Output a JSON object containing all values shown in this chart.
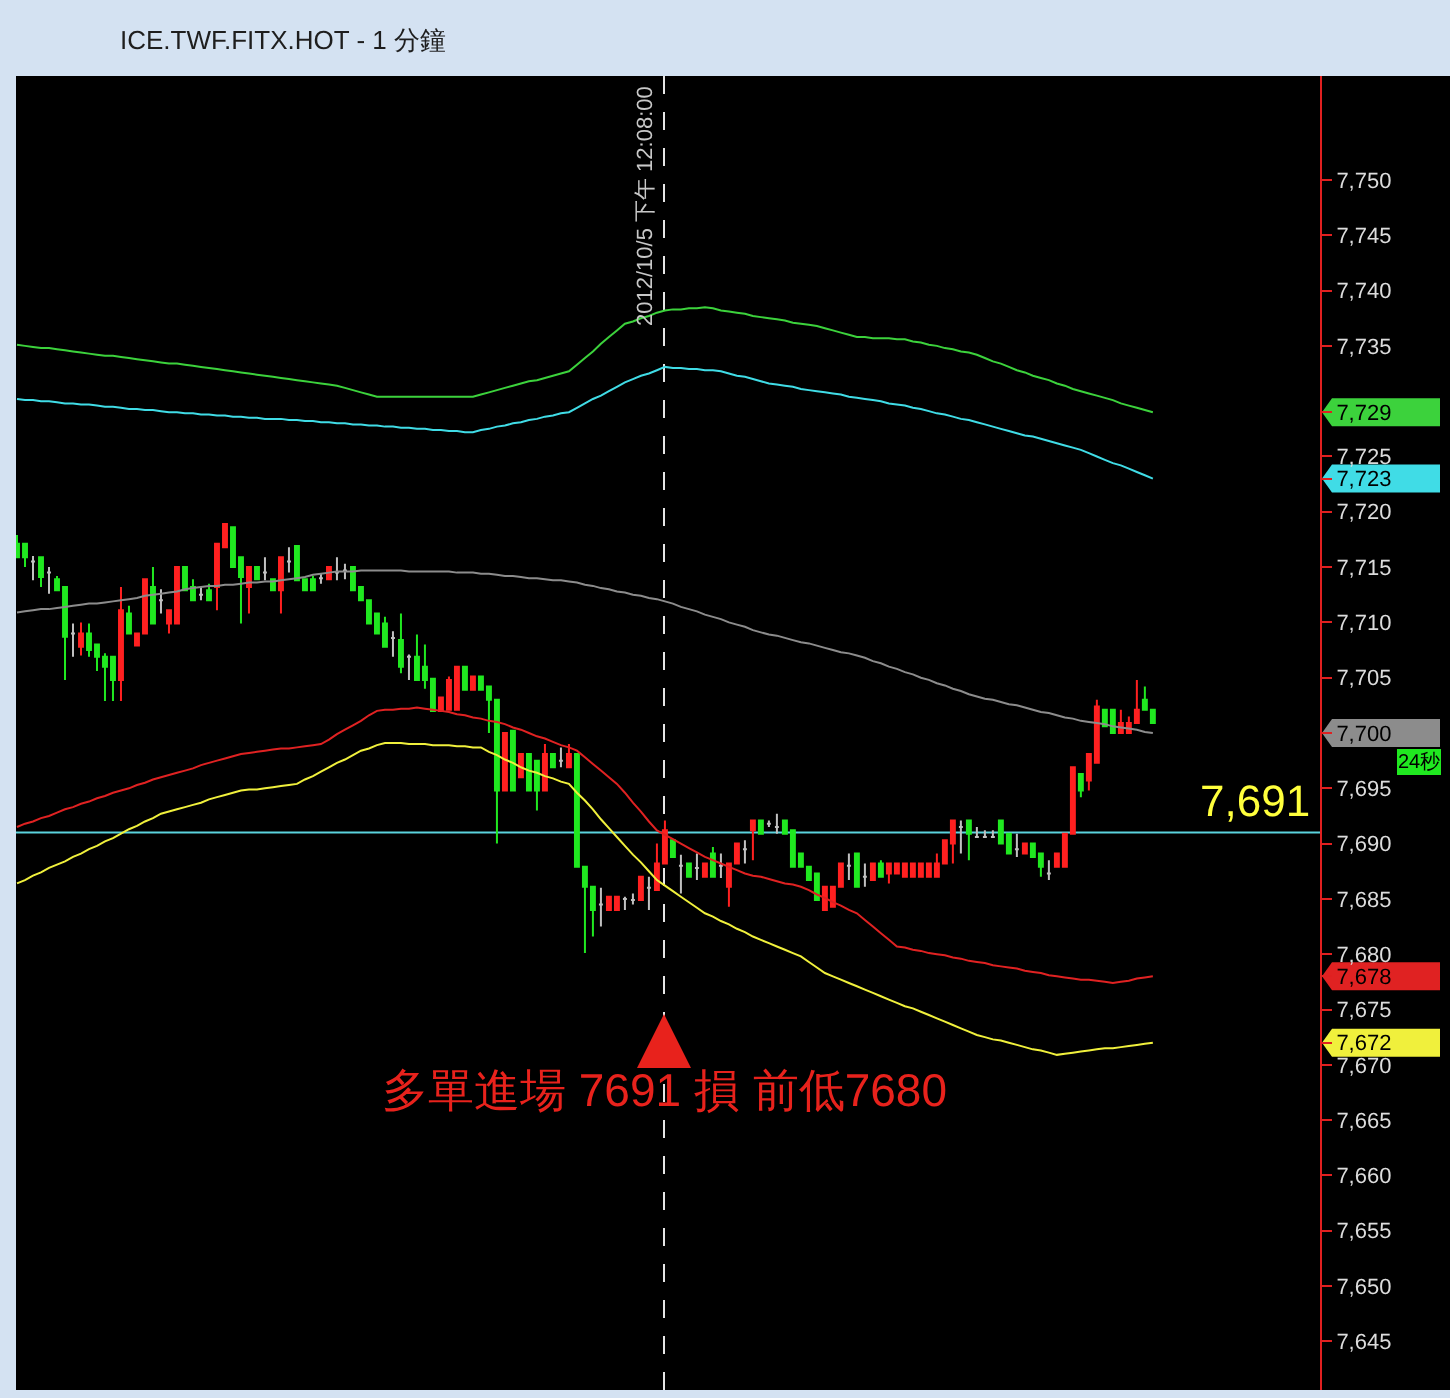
{
  "chart_data": {
    "type": "candlestick",
    "title": "ICE.TWF.FITX.HOT - 1 分鐘",
    "tick_labels": "y",
    "categories": [
      null,
      null,
      null,
      null,
      null,
      null,
      null,
      null,
      null,
      null,
      null,
      null,
      null,
      null,
      null,
      null,
      null,
      null,
      null,
      null,
      null,
      null,
      null,
      null,
      null,
      null,
      null,
      null,
      null,
      null,
      null,
      null,
      null,
      null,
      null,
      null,
      null,
      null,
      null,
      null,
      null,
      null,
      null,
      null,
      null,
      null,
      null,
      null,
      null,
      null,
      null,
      null,
      null,
      null,
      null,
      null,
      null,
      null,
      null,
      null,
      null,
      null,
      null,
      null,
      null,
      null,
      null,
      null,
      null,
      null,
      null,
      null,
      null,
      null,
      null,
      null,
      null,
      null,
      null,
      null,
      null,
      null,
      null,
      null,
      null,
      null,
      null,
      null,
      null,
      null,
      null,
      null,
      null,
      null,
      null,
      null,
      null,
      null,
      null,
      null,
      null,
      null,
      null,
      null,
      null,
      null,
      null,
      null,
      null,
      null,
      null,
      null,
      null,
      null,
      null,
      null,
      null,
      null,
      null,
      null,
      null,
      null,
      null,
      null,
      null,
      null,
      null,
      null,
      null,
      null,
      null,
      null,
      null,
      null,
      null,
      null,
      null,
      null,
      null,
      null,
      null,
      null,
      null
    ],
    "ohlc": [
      [
        7717.1,
        7717.9,
        7715.9,
        7715.9
      ],
      [
        7717.1,
        7717.1,
        7715.0,
        7715.9
      ],
      [
        7715.5,
        7716.0,
        7713.8,
        7715.5
      ],
      [
        7715.9,
        7715.9,
        7713.2,
        7714.1
      ],
      [
        7714.5,
        7715.0,
        7712.6,
        7714.5
      ],
      [
        7713.9,
        7714.2,
        7712.9,
        7712.9
      ],
      [
        7713.2,
        7713.2,
        7704.8,
        7708.7
      ],
      [
        7709.0,
        7709.9,
        7706.9,
        7709.0
      ],
      [
        7707.8,
        7710.0,
        7707.0,
        7709.0
      ],
      [
        7709.0,
        7709.9,
        7706.9,
        7707.5
      ],
      [
        7708.0,
        7708.0,
        7705.6,
        7706.9
      ],
      [
        7706.9,
        7707.2,
        7702.9,
        7706.0
      ],
      [
        7706.9,
        7706.9,
        7702.9,
        7704.8
      ],
      [
        7704.8,
        7713.2,
        7702.9,
        7711.1
      ],
      [
        7710.8,
        7711.5,
        7709.0,
        7709.0
      ],
      [
        7707.9,
        7709.0,
        7707.9,
        7709.0
      ],
      [
        7709.0,
        7713.9,
        7709.0,
        7713.9
      ],
      [
        7713.2,
        7715.0,
        7709.9,
        7709.9
      ],
      [
        7712.0,
        7713.0,
        7710.8,
        7712.0
      ],
      [
        7709.9,
        7711.1,
        7709.0,
        7711.1
      ],
      [
        7709.9,
        7715.0,
        7709.9,
        7715.0
      ],
      [
        7715.0,
        7715.0,
        7712.9,
        7712.9
      ],
      [
        7713.2,
        7713.9,
        7712.0,
        7712.0
      ],
      [
        7712.5,
        7713.2,
        7712.0,
        7712.5
      ],
      [
        7712.9,
        7713.5,
        7712.0,
        7712.0
      ],
      [
        7713.2,
        7717.1,
        7711.1,
        7717.1
      ],
      [
        7716.8,
        7718.9,
        7716.8,
        7718.9
      ],
      [
        7718.6,
        7718.6,
        7715.0,
        7715.0
      ],
      [
        7715.9,
        7715.9,
        7709.9,
        7714.1
      ],
      [
        7713.2,
        7715.0,
        7710.8,
        7715.0
      ],
      [
        7715.0,
        7715.0,
        7713.9,
        7713.9
      ],
      [
        7714.5,
        7715.9,
        7713.8,
        7714.5
      ],
      [
        7713.9,
        7713.9,
        7712.9,
        7712.9
      ],
      [
        7712.9,
        7715.9,
        7710.8,
        7715.9
      ],
      [
        7715.5,
        7716.8,
        7714.5,
        7715.5
      ],
      [
        7716.9,
        7716.9,
        7713.8,
        7713.8
      ],
      [
        7713.9,
        7713.9,
        7712.9,
        7712.9
      ],
      [
        7713.9,
        7714.2,
        7712.9,
        7712.9
      ],
      [
        7714.0,
        7714.4,
        7713.5,
        7714.0
      ],
      [
        7713.9,
        7715.0,
        7713.9,
        7715.0
      ],
      [
        7714.5,
        7715.9,
        7713.8,
        7714.5
      ],
      [
        7714.7,
        7715.3,
        7713.9,
        7714.7
      ],
      [
        7715.0,
        7715.0,
        7712.9,
        7712.9
      ],
      [
        7713.2,
        7713.2,
        7712.0,
        7712.0
      ],
      [
        7712.0,
        7712.0,
        7709.9,
        7709.9
      ],
      [
        7710.8,
        7710.8,
        7709.0,
        7709.0
      ],
      [
        7709.9,
        7710.5,
        7707.8,
        7707.8
      ],
      [
        7708.6,
        7709.2,
        7706.9,
        7708.6
      ],
      [
        7708.4,
        7710.8,
        7705.4,
        7706.0
      ],
      [
        7706.9,
        7707.1,
        7704.8,
        7706.9
      ],
      [
        7706.9,
        7708.9,
        7704.8,
        7704.8
      ],
      [
        7706.0,
        7708.0,
        7704.0,
        7704.8
      ],
      [
        7704.9,
        7704.9,
        7702.0,
        7702.0
      ],
      [
        7702.0,
        7703.2,
        7702.0,
        7703.2
      ],
      [
        7702.1,
        7705.1,
        7702.1,
        7704.8
      ],
      [
        7702.1,
        7706.0,
        7702.1,
        7706.0
      ],
      [
        7706.0,
        7706.0,
        7703.9,
        7703.9
      ],
      [
        7703.9,
        7705.1,
        7703.9,
        7705.1
      ],
      [
        7705.1,
        7705.1,
        7703.9,
        7703.9
      ],
      [
        7704.2,
        7704.2,
        7700.0,
        7703.0
      ],
      [
        7703.0,
        7703.0,
        7690.0,
        7694.8
      ],
      [
        7694.8,
        7700.0,
        7694.8,
        7700.0
      ],
      [
        7700.2,
        7700.2,
        7694.8,
        7694.8
      ],
      [
        7696.0,
        7698.1,
        7696.0,
        7698.1
      ],
      [
        7698.1,
        7698.1,
        7694.8,
        7694.8
      ],
      [
        7697.5,
        7697.5,
        7693.0,
        7694.8
      ],
      [
        7694.8,
        7699.0,
        7694.8,
        7698.1
      ],
      [
        7698.1,
        7698.1,
        7696.9,
        7696.9
      ],
      [
        7697.5,
        7698.7,
        7696.9,
        7697.5
      ],
      [
        7696.9,
        7699.0,
        7696.9,
        7698.1
      ],
      [
        7698.1,
        7698.1,
        7687.9,
        7687.9
      ],
      [
        7687.9,
        7687.9,
        7680.1,
        7686.1
      ],
      [
        7686.1,
        7686.1,
        7681.6,
        7684.0
      ],
      [
        7684.5,
        7686.0,
        7682.5,
        7684.5
      ],
      [
        7684.0,
        7685.2,
        7684.0,
        7685.2
      ],
      [
        7684.0,
        7685.2,
        7684.0,
        7685.2
      ],
      [
        7685.0,
        7685.2,
        7684.0,
        7685.0
      ],
      [
        7684.9,
        7685.5,
        7684.5,
        7684.9
      ],
      [
        7684.9,
        7687.0,
        7684.9,
        7687.0
      ],
      [
        7686.0,
        7687.0,
        7684.0,
        7686.0
      ],
      [
        7685.8,
        7690.0,
        7685.8,
        7688.2
      ],
      [
        7688.2,
        7692.1,
        7688.2,
        7691.2
      ],
      [
        7690.3,
        7690.3,
        7688.8,
        7688.8
      ],
      [
        7688.0,
        7689.0,
        7685.5,
        7688.0
      ],
      [
        7688.2,
        7688.2,
        7687.0,
        7687.0
      ],
      [
        7687.8,
        7689.1,
        7686.7,
        7687.8
      ],
      [
        7687.0,
        7688.2,
        7687.0,
        7688.2
      ],
      [
        7689.1,
        7689.7,
        7687.0,
        7687.0
      ],
      [
        7688.0,
        7689.1,
        7686.9,
        7688.0
      ],
      [
        7686.1,
        7688.2,
        7684.3,
        7688.2
      ],
      [
        7688.2,
        7690.0,
        7688.2,
        7690.0
      ],
      [
        7689.5,
        7690.3,
        7688.2,
        7689.5
      ],
      [
        7691.2,
        7692.1,
        7688.5,
        7692.1
      ],
      [
        7692.1,
        7692.1,
        7690.9,
        7690.9
      ],
      [
        7691.8,
        7692.1,
        7691.5,
        7691.8
      ],
      [
        7691.5,
        7692.7,
        7690.9,
        7691.5
      ],
      [
        7692.1,
        7692.1,
        7690.9,
        7690.9
      ],
      [
        7691.2,
        7691.2,
        7687.9,
        7687.9
      ],
      [
        7689.1,
        7689.1,
        7687.9,
        7687.9
      ],
      [
        7687.9,
        7687.9,
        7686.7,
        7686.7
      ],
      [
        7687.3,
        7687.3,
        7684.9,
        7684.9
      ],
      [
        7684.0,
        7686.1,
        7684.0,
        7686.1
      ],
      [
        7684.3,
        7686.1,
        7684.3,
        7686.1
      ],
      [
        7686.1,
        7688.2,
        7686.1,
        7688.2
      ],
      [
        7688.0,
        7689.1,
        7686.7,
        7688.0
      ],
      [
        7689.1,
        7689.1,
        7686.1,
        7686.1
      ],
      [
        7687.0,
        7688.2,
        7686.1,
        7687.0
      ],
      [
        7686.7,
        7688.2,
        7686.7,
        7688.2
      ],
      [
        7688.2,
        7688.5,
        7687.0,
        7687.0
      ],
      [
        7687.3,
        7688.2,
        7686.4,
        7688.2
      ],
      [
        7687.3,
        7688.2,
        7687.3,
        7688.2
      ],
      [
        7687.0,
        7688.2,
        7687.0,
        7688.2
      ],
      [
        7687.0,
        7688.2,
        7687.0,
        7688.2
      ],
      [
        7687.0,
        7688.2,
        7687.0,
        7688.2
      ],
      [
        7687.0,
        7688.2,
        7687.0,
        7688.2
      ],
      [
        7687.0,
        7689.1,
        7687.0,
        7688.2
      ],
      [
        7688.2,
        7690.3,
        7688.2,
        7690.3
      ],
      [
        7690.0,
        7692.1,
        7688.2,
        7692.1
      ],
      [
        7691.5,
        7692.1,
        7689.1,
        7691.5
      ],
      [
        7692.1,
        7692.1,
        7688.5,
        7690.9
      ],
      [
        7690.6,
        7691.5,
        7690.6,
        7690.6
      ],
      [
        7690.6,
        7691.2,
        7690.6,
        7690.6
      ],
      [
        7690.6,
        7691.2,
        7690.6,
        7690.6
      ],
      [
        7692.1,
        7692.1,
        7690.0,
        7690.0
      ],
      [
        7690.9,
        7690.9,
        7689.1,
        7689.1
      ],
      [
        7689.5,
        7690.9,
        7688.8,
        7689.5
      ],
      [
        7689.1,
        7690.0,
        7689.1,
        7690.0
      ],
      [
        7690.0,
        7690.0,
        7688.8,
        7688.8
      ],
      [
        7689.1,
        7689.1,
        7687.0,
        7687.9
      ],
      [
        7687.3,
        7688.5,
        7686.7,
        7687.3
      ],
      [
        7687.9,
        7689.1,
        7687.9,
        7689.1
      ],
      [
        7687.9,
        7690.9,
        7687.9,
        7690.9
      ],
      [
        7690.9,
        7696.9,
        7690.9,
        7696.9
      ],
      [
        7696.3,
        7696.3,
        7694.2,
        7694.8
      ],
      [
        7695.7,
        7698.1,
        7694.8,
        7698.1
      ],
      [
        7697.3,
        7703.0,
        7697.3,
        7702.4
      ],
      [
        7702.1,
        7702.1,
        7700.6,
        7700.6
      ],
      [
        7702.1,
        7702.1,
        7700.0,
        7700.0
      ],
      [
        7700.0,
        7702.1,
        7700.0,
        7700.9
      ],
      [
        7700.0,
        7701.5,
        7700.0,
        7700.9
      ],
      [
        7700.9,
        7704.8,
        7700.9,
        7702.1
      ],
      [
        7703.0,
        7704.2,
        7702.1,
        7702.1
      ],
      [
        7702.1,
        7702.1,
        7700.9,
        7700.9
      ]
    ],
    "colors": [
      "#20e820",
      "#20e820",
      "#c0c0c0",
      "#20e820",
      "#c0c0c0",
      "#20e820",
      "#20e820",
      "#c0c0c0",
      "#ff2020",
      "#20e820",
      "#20e820",
      "#20e820",
      "#20e820",
      "#ff2020",
      "#20e820",
      "#ff2020",
      "#ff2020",
      "#20e820",
      "#c0c0c0",
      "#ff2020",
      "#ff2020",
      "#20e820",
      "#20e820",
      "#c0c0c0",
      "#20e820",
      "#ff2020",
      "#ff2020",
      "#20e820",
      "#20e820",
      "#ff2020",
      "#20e820",
      "#c0c0c0",
      "#20e820",
      "#ff2020",
      "#c0c0c0",
      "#20e820",
      "#20e820",
      "#20e820",
      "#c0c0c0",
      "#ff2020",
      "#c0c0c0",
      "#c0c0c0",
      "#20e820",
      "#20e820",
      "#20e820",
      "#20e820",
      "#20e820",
      "#c0c0c0",
      "#20e820",
      "#c0c0c0",
      "#20e820",
      "#20e820",
      "#20e820",
      "#ff2020",
      "#ff2020",
      "#ff2020",
      "#20e820",
      "#ff2020",
      "#20e820",
      "#20e820",
      "#20e820",
      "#ff2020",
      "#20e820",
      "#ff2020",
      "#20e820",
      "#20e820",
      "#ff2020",
      "#20e820",
      "#c0c0c0",
      "#ff2020",
      "#20e820",
      "#20e820",
      "#20e820",
      "#c0c0c0",
      "#ff2020",
      "#ff2020",
      "#c0c0c0",
      "#c0c0c0",
      "#ff2020",
      "#c0c0c0",
      "#ff2020",
      "#ff2020",
      "#20e820",
      "#c0c0c0",
      "#20e820",
      "#c0c0c0",
      "#ff2020",
      "#20e820",
      "#c0c0c0",
      "#ff2020",
      "#ff2020",
      "#c0c0c0",
      "#ff2020",
      "#20e820",
      "#c0c0c0",
      "#c0c0c0",
      "#20e820",
      "#20e820",
      "#20e820",
      "#20e820",
      "#20e820",
      "#ff2020",
      "#ff2020",
      "#ff2020",
      "#c0c0c0",
      "#20e820",
      "#c0c0c0",
      "#ff2020",
      "#20e820",
      "#ff2020",
      "#ff2020",
      "#ff2020",
      "#ff2020",
      "#ff2020",
      "#ff2020",
      "#ff2020",
      "#ff2020",
      "#ff2020",
      "#c0c0c0",
      "#20e820",
      "#c0c0c0",
      "#c0c0c0",
      "#c0c0c0",
      "#20e820",
      "#20e820",
      "#c0c0c0",
      "#ff2020",
      "#20e820",
      "#20e820",
      "#c0c0c0",
      "#ff2020",
      "#ff2020",
      "#ff2020",
      "#20e820",
      "#ff2020",
      "#ff2020",
      "#20e820",
      "#20e820",
      "#ff2020",
      "#ff2020",
      "#ff2020",
      "#20e820",
      "#20e820"
    ],
    "series": [
      {
        "type": "line",
        "color": "#3cd23c",
        "values": [
          7735.1,
          7735.0,
          7734.9,
          7734.8,
          7734.8,
          7734.7,
          7734.6,
          7734.5,
          7734.4,
          7734.3,
          7734.2,
          7734.1,
          7734.1,
          7734.0,
          7733.9,
          7733.8,
          7733.7,
          7733.6,
          7733.5,
          7733.4,
          7733.4,
          7733.3,
          7733.2,
          7733.1,
          7733.0,
          7732.9,
          7732.8,
          7732.7,
          7732.6,
          7732.5,
          7732.4,
          7732.3,
          7732.2,
          7732.1,
          7732.0,
          7731.9,
          7731.8,
          7731.7,
          7731.6,
          7731.5,
          7731.4,
          7731.2,
          7731.0,
          7730.8,
          7730.6,
          7730.4,
          7730.4,
          7730.4,
          7730.4,
          7730.4,
          7730.4,
          7730.4,
          7730.4,
          7730.4,
          7730.4,
          7730.4,
          7730.4,
          7730.4,
          7730.6,
          7730.8,
          7731.0,
          7731.2,
          7731.4,
          7731.6,
          7731.8,
          7731.9,
          7732.1,
          7732.3,
          7732.5,
          7732.7,
          7733.3,
          7733.9,
          7734.5,
          7735.2,
          7735.8,
          7736.4,
          7737.0,
          7737.2,
          7737.5,
          7737.7,
          7738.0,
          7738.2,
          7738.3,
          7738.3,
          7738.4,
          7738.4,
          7738.5,
          7738.4,
          7738.2,
          7738.1,
          7738.0,
          7737.9,
          7737.7,
          7737.6,
          7737.5,
          7737.4,
          7737.3,
          7737.1,
          7737.0,
          7736.9,
          7736.8,
          7736.6,
          7736.4,
          7736.2,
          7736.0,
          7735.8,
          7735.8,
          7735.7,
          7735.7,
          7735.7,
          7735.6,
          7735.6,
          7735.4,
          7735.3,
          7735.1,
          7735.0,
          7734.8,
          7734.7,
          7734.5,
          7734.4,
          7734.2,
          7733.9,
          7733.6,
          7733.4,
          7733.1,
          7732.8,
          7732.6,
          7732.3,
          7732.1,
          7731.9,
          7731.6,
          7731.4,
          7731.1,
          7730.9,
          7730.7,
          7730.5,
          7730.3,
          7730.1,
          7729.8,
          7729.6,
          7729.4,
          7729.2,
          7729.0
        ]
      },
      {
        "type": "line",
        "color": "#40dce6",
        "values": [
          7730.2,
          7730.1,
          7730.1,
          7730.0,
          7730.0,
          7729.9,
          7729.8,
          7729.8,
          7729.7,
          7729.7,
          7729.6,
          7729.5,
          7729.5,
          7729.4,
          7729.3,
          7729.3,
          7729.2,
          7729.2,
          7729.1,
          7729.0,
          7729.0,
          7728.9,
          7728.9,
          7728.8,
          7728.8,
          7728.7,
          7728.7,
          7728.6,
          7728.6,
          7728.5,
          7728.5,
          7728.4,
          7728.4,
          7728.4,
          7728.3,
          7728.3,
          7728.2,
          7728.2,
          7728.1,
          7728.1,
          7728.0,
          7728.0,
          7727.9,
          7727.9,
          7727.8,
          7727.8,
          7727.7,
          7727.7,
          7727.6,
          7727.6,
          7727.5,
          7727.5,
          7727.4,
          7727.4,
          7727.3,
          7727.3,
          7727.2,
          7727.2,
          7727.4,
          7727.5,
          7727.7,
          7727.8,
          7728.0,
          7728.1,
          7728.3,
          7728.4,
          7728.6,
          7728.7,
          7728.9,
          7729.0,
          7729.4,
          7729.8,
          7730.2,
          7730.5,
          7730.9,
          7731.3,
          7731.7,
          7732.0,
          7732.3,
          7732.5,
          7732.8,
          7733.1,
          7733.0,
          7733.0,
          7732.9,
          7732.9,
          7732.8,
          7732.8,
          7732.7,
          7732.5,
          7732.3,
          7732.2,
          7732.0,
          7731.8,
          7731.6,
          7731.5,
          7731.4,
          7731.3,
          7731.1,
          7731.0,
          7730.9,
          7730.8,
          7730.7,
          7730.6,
          7730.4,
          7730.3,
          7730.2,
          7730.1,
          7730.0,
          7729.8,
          7729.7,
          7729.6,
          7729.4,
          7729.3,
          7729.1,
          7728.9,
          7728.8,
          7728.6,
          7728.4,
          7728.3,
          7728.1,
          7727.9,
          7727.7,
          7727.5,
          7727.3,
          7727.1,
          7726.9,
          7726.8,
          7726.6,
          7726.4,
          7726.2,
          7726.0,
          7725.8,
          7725.6,
          7725.3,
          7725.0,
          7724.7,
          7724.4,
          7724.2,
          7723.9,
          7723.6,
          7723.3,
          7723.0
        ]
      },
      {
        "type": "line",
        "color": "#8c8c8c",
        "values": [
          7710.9,
          7711.0,
          7711.1,
          7711.2,
          7711.2,
          7711.3,
          7711.4,
          7711.5,
          7711.6,
          7711.7,
          7711.7,
          7711.8,
          7711.9,
          7712.0,
          7712.1,
          7712.2,
          7712.4,
          7712.5,
          7712.6,
          7712.7,
          7712.8,
          7713.0,
          7713.1,
          7713.2,
          7713.3,
          7713.3,
          7713.4,
          7713.4,
          7713.5,
          7713.6,
          7713.6,
          7713.7,
          7713.7,
          7713.8,
          7713.9,
          7714.0,
          7714.1,
          7714.3,
          7714.4,
          7714.5,
          7714.6,
          7714.6,
          7714.6,
          7714.7,
          7714.7,
          7714.7,
          7714.7,
          7714.7,
          7714.7,
          7714.6,
          7714.6,
          7714.6,
          7714.6,
          7714.6,
          7714.6,
          7714.5,
          7714.5,
          7714.5,
          7714.4,
          7714.4,
          7714.3,
          7714.2,
          7714.2,
          7714.1,
          7714.0,
          7714.0,
          7713.9,
          7713.8,
          7713.8,
          7713.7,
          7713.6,
          7713.4,
          7713.3,
          7713.1,
          7713.0,
          7712.8,
          7712.7,
          7712.5,
          7712.4,
          7712.2,
          7712.1,
          7711.9,
          7711.7,
          7711.4,
          7711.2,
          7711.0,
          7710.7,
          7710.5,
          7710.3,
          7710.0,
          7709.8,
          7709.6,
          7709.3,
          7709.1,
          7708.9,
          7708.8,
          7708.6,
          7708.4,
          7708.2,
          7708.1,
          7707.9,
          7707.7,
          7707.5,
          7707.3,
          7707.2,
          7707.0,
          7706.8,
          7706.5,
          7706.3,
          7706.0,
          7705.8,
          7705.5,
          7705.3,
          7705.0,
          7704.8,
          7704.5,
          7704.3,
          7704.0,
          7703.8,
          7703.5,
          7703.3,
          7703.1,
          7703.0,
          7702.8,
          7702.6,
          7702.5,
          7702.3,
          7702.1,
          7701.9,
          7701.8,
          7701.6,
          7701.4,
          7701.3,
          7701.1,
          7701.0,
          7700.9,
          7700.8,
          7700.6,
          7700.5,
          7700.4,
          7700.3,
          7700.1,
          7700.0
        ]
      },
      {
        "type": "line",
        "color": "#e02222",
        "values": [
          7691.5,
          7691.8,
          7692.0,
          7692.3,
          7692.5,
          7692.8,
          7693.1,
          7693.3,
          7693.6,
          7693.8,
          7694.1,
          7694.3,
          7694.6,
          7694.8,
          7695.0,
          7695.3,
          7695.5,
          7695.8,
          7696.0,
          7696.2,
          7696.4,
          7696.6,
          7696.8,
          7697.1,
          7697.3,
          7697.5,
          7697.7,
          7697.9,
          7698.1,
          7698.2,
          7698.3,
          7698.4,
          7698.5,
          7698.6,
          7698.6,
          7698.7,
          7698.8,
          7698.9,
          7699.0,
          7699.4,
          7699.9,
          7700.3,
          7700.7,
          7701.1,
          7701.6,
          7702.0,
          7702.1,
          7702.1,
          7702.2,
          7702.2,
          7702.3,
          7702.2,
          7702.1,
          7702.0,
          7701.9,
          7701.7,
          7701.6,
          7701.4,
          7701.3,
          7701.1,
          7701.0,
          7700.8,
          7700.5,
          7700.3,
          7700.0,
          7699.7,
          7699.5,
          7699.2,
          7698.9,
          7698.7,
          7698.4,
          7697.8,
          7697.2,
          7696.6,
          7696.0,
          7695.4,
          7694.6,
          7693.7,
          7692.9,
          7692.0,
          7691.2,
          7690.8,
          7690.4,
          7690.0,
          7689.6,
          7689.2,
          7688.8,
          7688.5,
          7688.2,
          7687.9,
          7687.6,
          7687.3,
          7687.1,
          7687.0,
          7686.8,
          7686.6,
          7686.4,
          7686.3,
          7686.1,
          7685.8,
          7685.4,
          7685.1,
          7684.7,
          7684.4,
          7684.0,
          7683.7,
          7683.1,
          7682.5,
          7681.9,
          7681.3,
          7680.7,
          7680.6,
          7680.4,
          7680.3,
          7680.1,
          7680.0,
          7679.9,
          7679.7,
          7679.6,
          7679.4,
          7679.3,
          7679.2,
          7679.0,
          7678.9,
          7678.8,
          7678.7,
          7678.5,
          7678.4,
          7678.3,
          7678.1,
          7678.0,
          7677.9,
          7677.8,
          7677.7,
          7677.7,
          7677.6,
          7677.5,
          7677.4,
          7677.5,
          7677.6,
          7677.8,
          7677.9,
          7678.0
        ]
      },
      {
        "type": "line",
        "color": "#f0f03c",
        "values": [
          7686.4,
          7686.7,
          7687.1,
          7687.4,
          7687.8,
          7688.1,
          7688.4,
          7688.8,
          7689.1,
          7689.5,
          7689.8,
          7690.2,
          7690.5,
          7690.9,
          7691.3,
          7691.6,
          7692.0,
          7692.3,
          7692.7,
          7692.9,
          7693.1,
          7693.3,
          7693.5,
          7693.7,
          7694.0,
          7694.2,
          7694.4,
          7694.6,
          7694.8,
          7694.9,
          7694.9,
          7695.0,
          7695.1,
          7695.2,
          7695.3,
          7695.4,
          7695.8,
          7696.1,
          7696.5,
          7696.9,
          7697.3,
          7697.6,
          7698.0,
          7698.4,
          7698.6,
          7698.9,
          7699.1,
          7699.1,
          7699.1,
          7699.0,
          7699.0,
          7699.0,
          7698.9,
          7698.9,
          7698.9,
          7698.8,
          7698.8,
          7698.7,
          7698.7,
          7698.3,
          7698.0,
          7697.6,
          7697.3,
          7696.9,
          7696.6,
          7696.4,
          7696.1,
          7695.9,
          7695.6,
          7695.4,
          7694.6,
          7693.9,
          7693.1,
          7692.2,
          7691.4,
          7690.6,
          7689.8,
          7689.0,
          7688.3,
          7687.5,
          7686.7,
          7686.2,
          7685.7,
          7685.2,
          7684.7,
          7684.2,
          7683.7,
          7683.4,
          7683.0,
          7682.7,
          7682.3,
          7682.0,
          7681.6,
          7681.3,
          7681.0,
          7680.7,
          7680.4,
          7680.1,
          7679.8,
          7679.3,
          7678.8,
          7678.3,
          7678.0,
          7677.7,
          7677.4,
          7677.1,
          7676.8,
          7676.5,
          7676.2,
          7675.9,
          7675.6,
          7675.3,
          7675.1,
          7674.8,
          7674.5,
          7674.2,
          7673.9,
          7673.6,
          7673.3,
          7673.0,
          7672.7,
          7672.5,
          7672.3,
          7672.2,
          7672.0,
          7671.8,
          7671.6,
          7671.4,
          7671.3,
          7671.1,
          7670.9,
          7671.0,
          7671.1,
          7671.2,
          7671.3,
          7671.4,
          7671.5,
          7671.5,
          7671.6,
          7671.7,
          7671.8,
          7671.9,
          7672.0
        ]
      }
    ],
    "ylim": [
      7640.6,
      7759.4
    ],
    "yticks": [
      {
        "value": 7645,
        "label": "7,645"
      },
      {
        "value": 7650,
        "label": "7,650"
      },
      {
        "value": 7655,
        "label": "7,655"
      },
      {
        "value": 7660,
        "label": "7,660"
      },
      {
        "value": 7665,
        "label": "7,665"
      },
      {
        "value": 7670,
        "label": "7,670"
      },
      {
        "value": 7672,
        "label": "7,672"
      },
      {
        "value": 7675,
        "label": "7,675"
      },
      {
        "value": 7678,
        "label": "7,678"
      },
      {
        "value": 7680,
        "label": "7,680"
      },
      {
        "value": 7685,
        "label": "7,685"
      },
      {
        "value": 7690,
        "label": "7,690"
      },
      {
        "value": 7695,
        "label": "7,695"
      },
      {
        "value": 7700,
        "label": "7,700"
      },
      {
        "value": 7705,
        "label": "7,705"
      },
      {
        "value": 7710,
        "label": "7,710"
      },
      {
        "value": 7715,
        "label": "7,715"
      },
      {
        "value": 7720,
        "label": "7,720"
      },
      {
        "value": 7723,
        "label": "7,723"
      },
      {
        "value": 7725,
        "label": "7,725"
      },
      {
        "value": 7729,
        "label": "7,729"
      },
      {
        "value": 7735,
        "label": "7,735"
      },
      {
        "value": 7740,
        "label": "7,740"
      },
      {
        "value": 7745,
        "label": "7,745"
      },
      {
        "value": 7750,
        "label": "7,750"
      }
    ],
    "ref_lines": [
      {
        "axis": "y",
        "value": 7691,
        "label": "7,691",
        "color": "#5ad2dc"
      }
    ],
    "annotations": [
      "2012/10/5 下午 12:08:00",
      "多單進場 7691 損 前低7680",
      "24秒"
    ]
  }
}
